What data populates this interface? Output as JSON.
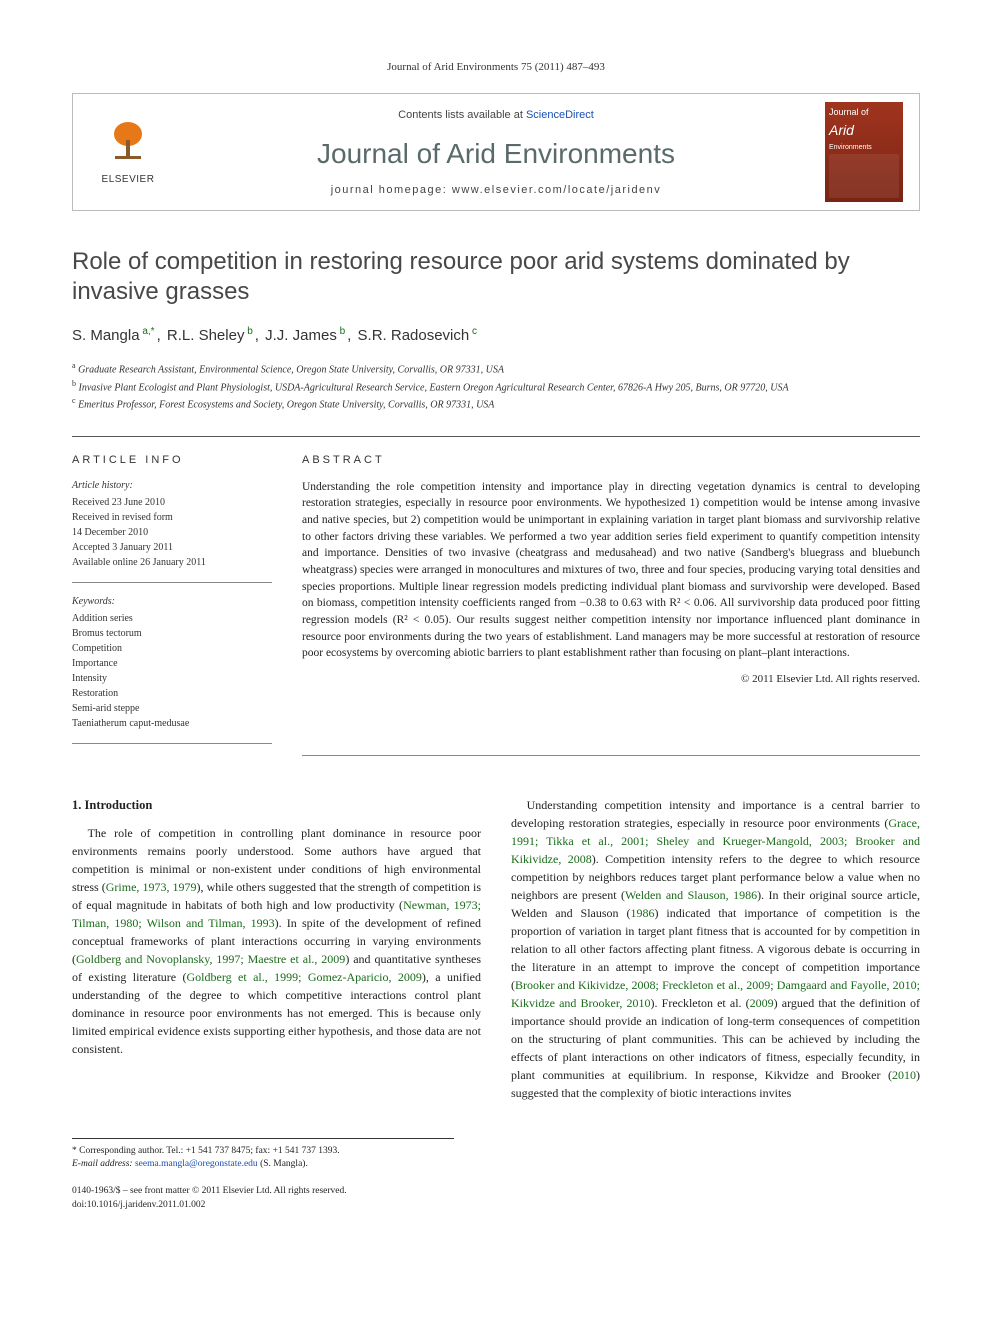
{
  "runhead": "Journal of Arid Environments 75 (2011) 487–493",
  "masthead": {
    "contents_prefix": "Contents lists available at ",
    "contents_link": "ScienceDirect",
    "journal": "Journal of Arid Environments",
    "homepage_label": "journal homepage: ",
    "homepage_url": "www.elsevier.com/locate/jaridenv",
    "publisher_logo": "ELSEVIER",
    "cover_word": "Arid"
  },
  "title": "Role of competition in restoring resource poor arid systems dominated by invasive grasses",
  "authors": [
    {
      "name": "S. Mangla",
      "marks": "a,*"
    },
    {
      "name": "R.L. Sheley",
      "marks": "b"
    },
    {
      "name": "J.J. James",
      "marks": "b"
    },
    {
      "name": "S.R. Radosevich",
      "marks": "c"
    }
  ],
  "affiliations": [
    {
      "mark": "a",
      "text": "Graduate Research Assistant, Environmental Science, Oregon State University, Corvallis, OR 97331, USA"
    },
    {
      "mark": "b",
      "text": "Invasive Plant Ecologist and Plant Physiologist, USDA-Agricultural Research Service, Eastern Oregon Agricultural Research Center, 67826-A Hwy 205, Burns, OR 97720, USA"
    },
    {
      "mark": "c",
      "text": "Emeritus Professor, Forest Ecosystems and Society, Oregon State University, Corvallis, OR 97331, USA"
    }
  ],
  "article_info": {
    "head": "ARTICLE INFO",
    "history_label": "Article history:",
    "history": [
      "Received 23 June 2010",
      "Received in revised form",
      "14 December 2010",
      "Accepted 3 January 2011",
      "Available online 26 January 2011"
    ],
    "keywords_label": "Keywords:",
    "keywords": [
      "Addition series",
      "Bromus tectorum",
      "Competition",
      "Importance",
      "Intensity",
      "Restoration",
      "Semi-arid steppe",
      "Taeniatherum caput-medusae"
    ]
  },
  "abstract": {
    "head": "ABSTRACT",
    "text": "Understanding the role competition intensity and importance play in directing vegetation dynamics is central to developing restoration strategies, especially in resource poor environments. We hypothesized 1) competition would be intense among invasive and native species, but 2) competition would be unimportant in explaining variation in target plant biomass and survivorship relative to other factors driving these variables. We performed a two year addition series field experiment to quantify competition intensity and importance. Densities of two invasive (cheatgrass and medusahead) and two native (Sandberg's bluegrass and bluebunch wheatgrass) species were arranged in monocultures and mixtures of two, three and four species, producing varying total densities and species proportions. Multiple linear regression models predicting individual plant biomass and survivorship were developed. Based on biomass, competition intensity coefficients ranged from −0.38 to 0.63 with R² < 0.06. All survivorship data produced poor fitting regression models (R² < 0.05). Our results suggest neither competition intensity nor importance influenced plant dominance in resource poor environments during the two years of establishment. Land managers may be more successful at restoration of resource poor ecosystems by overcoming abiotic barriers to plant establishment rather than focusing on plant–plant interactions.",
    "copyright": "© 2011 Elsevier Ltd. All rights reserved."
  },
  "section1": {
    "head": "1. Introduction",
    "col1": "The role of competition in controlling plant dominance in resource poor environments remains poorly understood. Some authors have argued that competition is minimal or non-existent under conditions of high environmental stress (Grime, 1973, 1979), while others suggested that the strength of competition is of equal magnitude in habitats of both high and low productivity (Newman, 1973; Tilman, 1980; Wilson and Tilman, 1993). In spite of the development of refined conceptual frameworks of plant interactions occurring in varying environments (Goldberg and Novoplansky, 1997; Maestre et al., 2009) and quantitative syntheses of existing literature (Goldberg et al., 1999; Gomez-Aparicio, 2009), a unified understanding of the degree to which competitive interactions control plant dominance in resource poor environments has not emerged. This is because only limited empirical evidence exists supporting either hypothesis, and those data are not consistent.",
    "col2": "Understanding competition intensity and importance is a central barrier to developing restoration strategies, especially in resource poor environments (Grace, 1991; Tikka et al., 2001; Sheley and Krueger-Mangold, 2003; Brooker and Kikividze, 2008). Competition intensity refers to the degree to which resource competition by neighbors reduces target plant performance below a value when no neighbors are present (Welden and Slauson, 1986). In their original source article, Welden and Slauson (1986) indicated that importance of competition is the proportion of variation in target plant fitness that is accounted for by competition in relation to all other factors affecting plant fitness. A vigorous debate is occurring in the literature in an attempt to improve the concept of competition importance (Brooker and Kikividze, 2008; Freckleton et al., 2009; Damgaard and Fayolle, 2010; Kikvidze and Brooker, 2010). Freckleton et al. (2009) argued that the definition of importance should provide an indication of long-term consequences of competition on the structuring of plant communities. This can be achieved by including the effects of plant interactions on other indicators of fitness, especially fecundity, in plant communities at equilibrium. In response, Kikvidze and Brooker (2010) suggested that the complexity of biotic interactions invites"
  },
  "corresponding": {
    "label": "* Corresponding author. Tel.: +1 541 737 8475; fax: +1 541 737 1393.",
    "email_label": "E-mail address: ",
    "email": "seema.mangla@oregonstate.edu",
    "email_suffix": " (S. Mangla)."
  },
  "docfoot": {
    "line1": "0140-1963/$ – see front matter © 2011 Elsevier Ltd. All rights reserved.",
    "line2": "doi:10.1016/j.jaridenv.2011.01.002"
  },
  "colors": {
    "link_blue": "#1a4fb3",
    "cite_green": "#1a6b1a",
    "elsevier_orange": "#e67817",
    "journal_gray": "#5a6a6a",
    "cover_bg_top": "#a0341e",
    "cover_bg_bot": "#7a2414"
  }
}
